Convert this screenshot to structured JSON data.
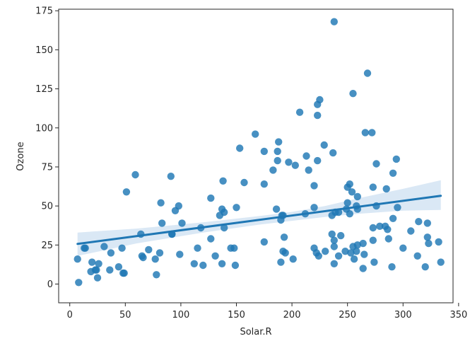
{
  "chart_data": {
    "type": "scatter",
    "title": "",
    "xlabel": "Solar.R",
    "ylabel": "Ozone",
    "xlim": [
      -10,
      345
    ],
    "ylim": [
      -12,
      176
    ],
    "xticks": [
      0,
      50,
      100,
      150,
      200,
      250,
      300,
      350
    ],
    "yticks": [
      0,
      25,
      50,
      75,
      100,
      125,
      150,
      175
    ],
    "grid": false,
    "legend": "none",
    "colors": {
      "points": "#1f77b4",
      "regression_line": "#1f77b4",
      "confidence_band": "#c6dbef",
      "axes": "#262626"
    },
    "regression": {
      "x_range": [
        7,
        334
      ],
      "line": [
        [
          7,
          25.7
        ],
        [
          334,
          56.5
        ]
      ],
      "ci_upper": [
        [
          7,
          33
        ],
        [
          60,
          35.5
        ],
        [
          120,
          39.5
        ],
        [
          170,
          43.5
        ],
        [
          200,
          46.2
        ],
        [
          230,
          50
        ],
        [
          260,
          55
        ],
        [
          300,
          61
        ],
        [
          334,
          66.5
        ]
      ],
      "ci_lower": [
        [
          7,
          18
        ],
        [
          60,
          26
        ],
        [
          120,
          33
        ],
        [
          170,
          38
        ],
        [
          200,
          40.5
        ],
        [
          230,
          43
        ],
        [
          260,
          45
        ],
        [
          300,
          47
        ],
        [
          334,
          47.5
        ]
      ]
    },
    "points": [
      [
        7,
        16
      ],
      [
        8,
        1
      ],
      [
        13,
        23
      ],
      [
        14,
        23
      ],
      [
        19,
        8
      ],
      [
        20,
        14
      ],
      [
        23,
        9
      ],
      [
        24,
        9
      ],
      [
        25,
        4
      ],
      [
        26,
        13
      ],
      [
        31,
        24
      ],
      [
        36,
        9
      ],
      [
        37,
        20
      ],
      [
        44,
        11
      ],
      [
        47,
        23
      ],
      [
        48,
        7
      ],
      [
        49,
        7
      ],
      [
        51,
        59
      ],
      [
        59,
        70
      ],
      [
        64,
        32
      ],
      [
        65,
        18
      ],
      [
        66,
        17
      ],
      [
        71,
        22
      ],
      [
        77,
        16
      ],
      [
        78,
        6
      ],
      [
        81,
        20
      ],
      [
        82,
        52
      ],
      [
        83,
        39
      ],
      [
        91,
        69
      ],
      [
        92,
        32
      ],
      [
        92,
        32
      ],
      [
        95,
        47
      ],
      [
        98,
        50
      ],
      [
        99,
        19
      ],
      [
        101,
        39
      ],
      [
        112,
        13
      ],
      [
        115,
        23
      ],
      [
        118,
        36
      ],
      [
        120,
        12
      ],
      [
        127,
        55
      ],
      [
        127,
        29
      ],
      [
        131,
        18
      ],
      [
        135,
        44
      ],
      [
        137,
        13
      ],
      [
        137,
        48
      ],
      [
        138,
        66
      ],
      [
        139,
        46
      ],
      [
        139,
        36
      ],
      [
        145,
        23
      ],
      [
        148,
        23
      ],
      [
        149,
        12
      ],
      [
        150,
        49
      ],
      [
        153,
        87
      ],
      [
        157,
        65
      ],
      [
        167,
        96
      ],
      [
        175,
        85
      ],
      [
        175,
        64
      ],
      [
        175,
        27
      ],
      [
        183,
        73
      ],
      [
        186,
        48
      ],
      [
        187,
        79
      ],
      [
        187,
        85
      ],
      [
        188,
        91
      ],
      [
        190,
        14
      ],
      [
        190,
        41
      ],
      [
        191,
        44
      ],
      [
        192,
        44
      ],
      [
        192,
        21
      ],
      [
        193,
        30
      ],
      [
        194,
        20
      ],
      [
        197,
        78
      ],
      [
        201,
        16
      ],
      [
        203,
        76
      ],
      [
        207,
        110
      ],
      [
        212,
        45
      ],
      [
        213,
        82
      ],
      [
        215,
        73
      ],
      [
        220,
        23
      ],
      [
        220,
        63
      ],
      [
        220,
        49
      ],
      [
        222,
        20
      ],
      [
        223,
        115
      ],
      [
        223,
        108
      ],
      [
        223,
        79
      ],
      [
        224,
        18
      ],
      [
        225,
        118
      ],
      [
        229,
        89
      ],
      [
        230,
        21
      ],
      [
        236,
        32
      ],
      [
        236,
        44
      ],
      [
        237,
        84
      ],
      [
        238,
        168
      ],
      [
        238,
        28
      ],
      [
        238,
        24
      ],
      [
        238,
        13
      ],
      [
        239,
        46
      ],
      [
        242,
        18
      ],
      [
        244,
        31
      ],
      [
        248,
        21
      ],
      [
        249,
        48
      ],
      [
        250,
        62
      ],
      [
        250,
        52
      ],
      [
        252,
        64
      ],
      [
        252,
        45
      ],
      [
        253,
        20
      ],
      [
        254,
        59
      ],
      [
        255,
        122
      ],
      [
        255,
        24
      ],
      [
        256,
        16
      ],
      [
        258,
        50
      ],
      [
        258,
        21
      ],
      [
        259,
        25
      ],
      [
        259,
        48
      ],
      [
        259,
        56
      ],
      [
        264,
        10
      ],
      [
        264,
        26
      ],
      [
        265,
        19
      ],
      [
        266,
        97
      ],
      [
        268,
        135
      ],
      [
        272,
        97
      ],
      [
        273,
        36
      ],
      [
        273,
        28
      ],
      [
        273,
        62
      ],
      [
        274,
        14
      ],
      [
        276,
        77
      ],
      [
        276,
        50
      ],
      [
        279,
        37
      ],
      [
        284,
        37
      ],
      [
        285,
        61
      ],
      [
        286,
        35
      ],
      [
        287,
        29
      ],
      [
        290,
        11
      ],
      [
        291,
        71
      ],
      [
        291,
        42
      ],
      [
        294,
        80
      ],
      [
        295,
        49
      ],
      [
        300,
        23
      ],
      [
        307,
        34
      ],
      [
        313,
        18
      ],
      [
        314,
        40
      ],
      [
        320,
        11
      ],
      [
        322,
        39
      ],
      [
        322,
        30
      ],
      [
        323,
        26
      ],
      [
        332,
        27
      ],
      [
        334,
        14
      ],
      [
        242,
        46
      ]
    ]
  }
}
